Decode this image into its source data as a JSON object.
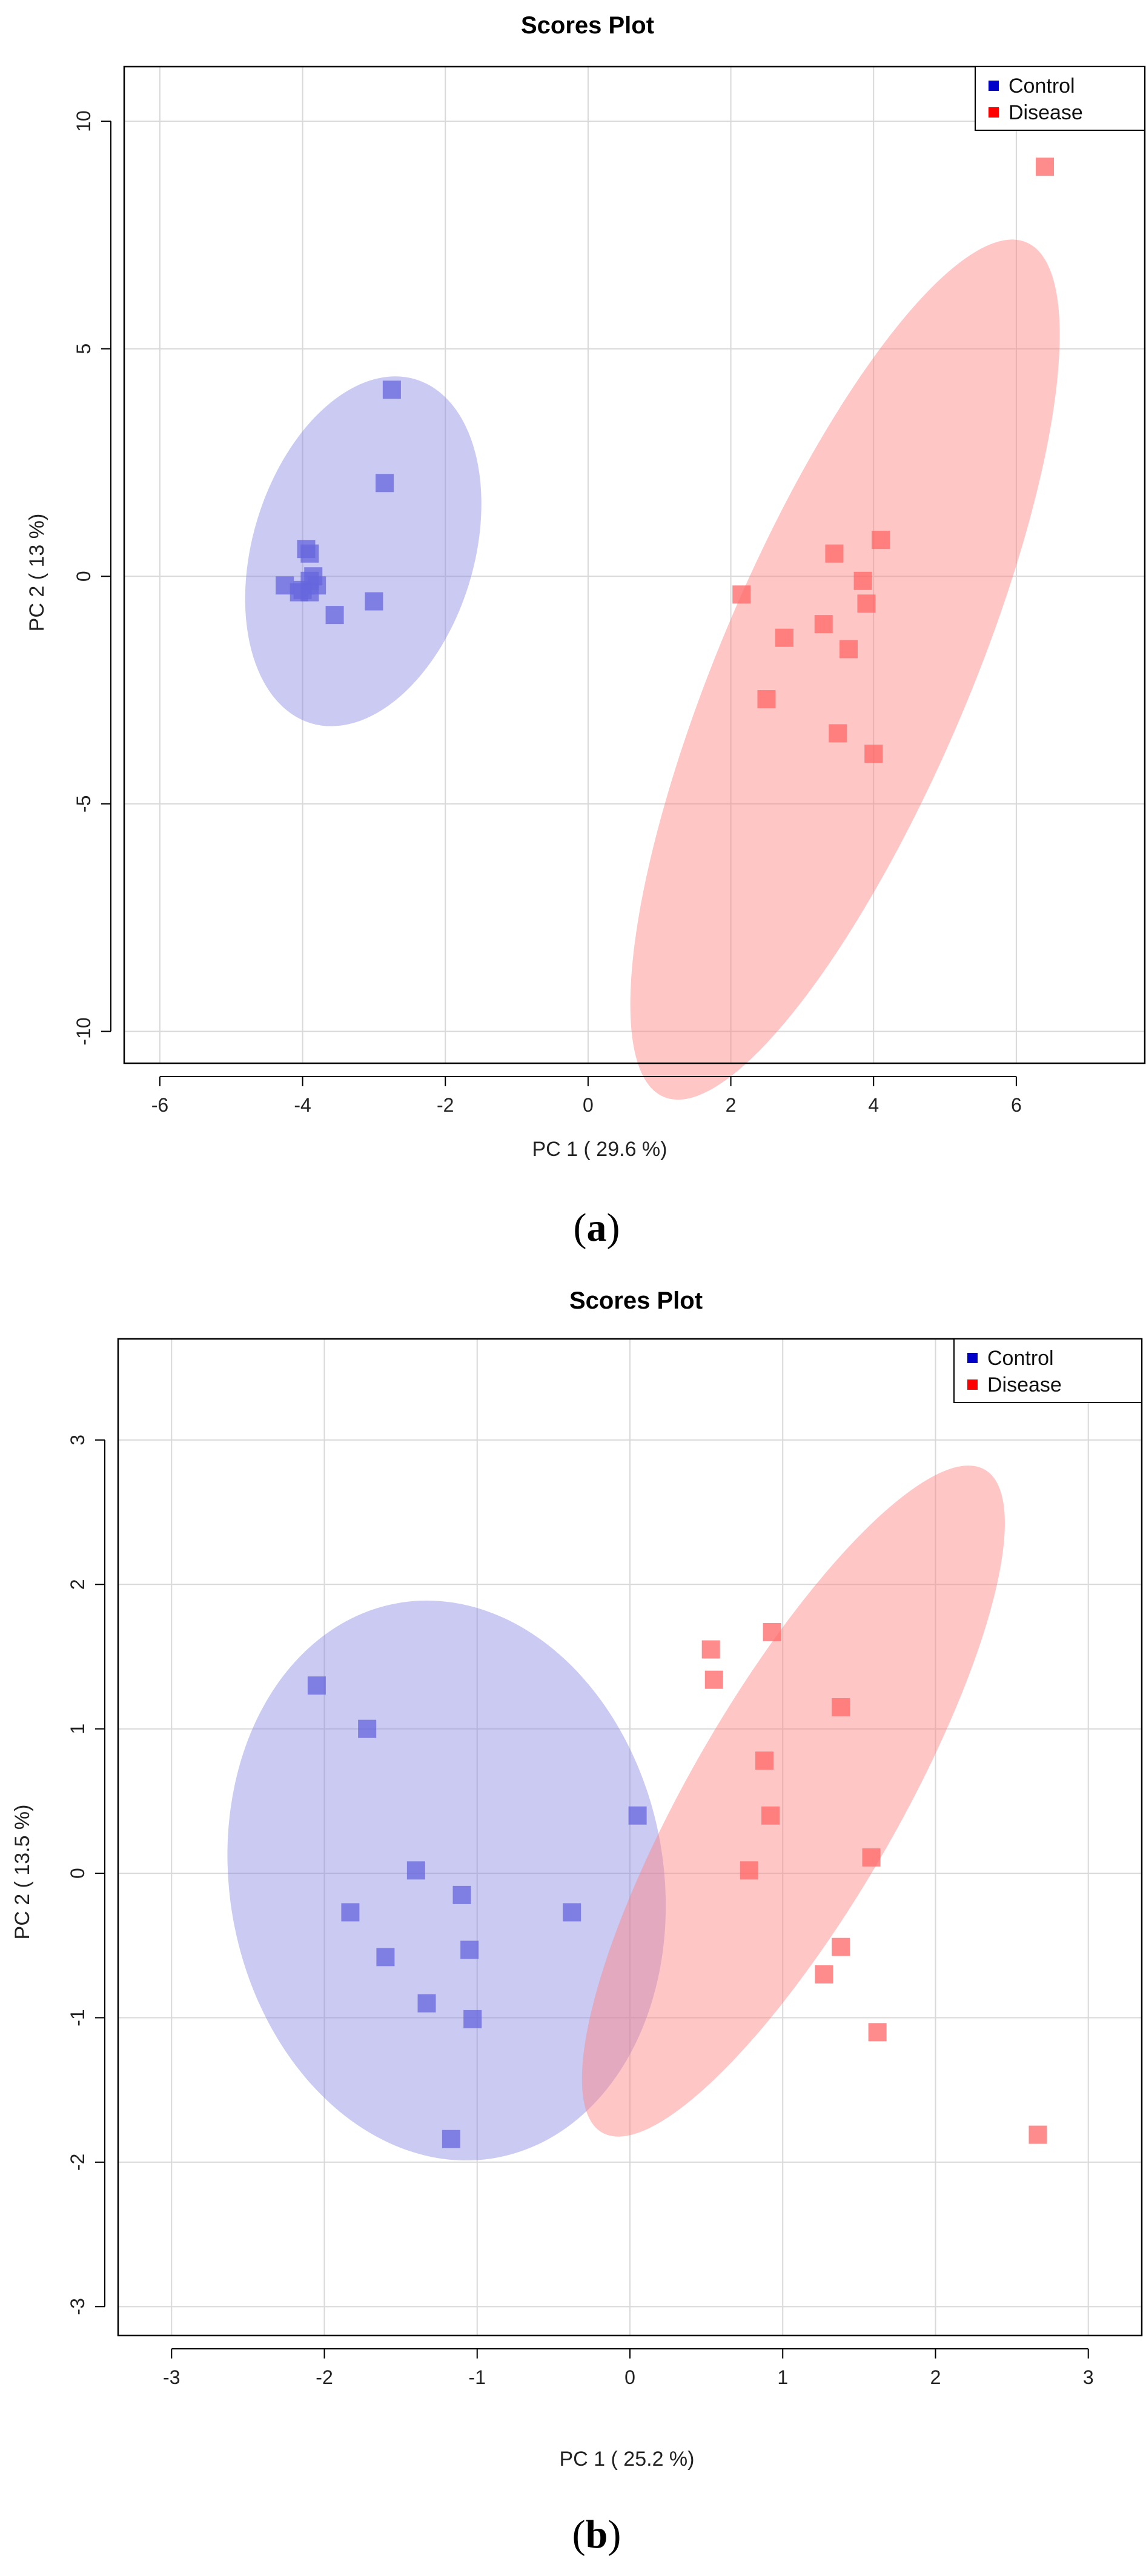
{
  "colors": {
    "control": "#0000c8",
    "disease": "#ff0000",
    "control_point": "#6666dd",
    "disease_point": "#ff6666",
    "control_ellipse": "#8080e0",
    "disease_ellipse": "#ff8080",
    "grid": "#d9d9d9"
  },
  "chart_data": [
    {
      "type": "scatter",
      "title": "Scores Plot",
      "xlabel": "PC 1 ( 29.6 %)",
      "ylabel": "PC 2 ( 13 %)",
      "caption": "a",
      "xlim": [
        -6.5,
        7.8
      ],
      "ylim": [
        -10.7,
        11.2
      ],
      "xticks": [
        -6,
        -4,
        -2,
        0,
        2,
        4,
        6
      ],
      "xtick_labels": [
        "-6",
        "-4",
        "-2",
        "0",
        "2",
        "4",
        "6"
      ],
      "yticks": [
        -10,
        -5,
        0,
        5,
        10
      ],
      "ytick_labels": [
        "-10",
        "-5",
        "0",
        "5",
        "10"
      ],
      "legend": {
        "position": "top-right",
        "entries": [
          "Control",
          "Disease"
        ]
      },
      "series": [
        {
          "name": "Control",
          "x": [
            -2.75,
            -2.85,
            -3.95,
            -3.9,
            -4.25,
            -4.05,
            -4.0,
            -3.9,
            -3.85,
            -3.8,
            -3.9,
            -3.55,
            -3.0
          ],
          "y": [
            4.1,
            2.05,
            0.6,
            0.5,
            -0.2,
            -0.35,
            -0.3,
            -0.1,
            0.0,
            -0.2,
            -0.35,
            -0.85,
            -0.55
          ],
          "ellipse": {
            "cx": -3.15,
            "cy": 0.55,
            "rx": 1.55,
            "ry": 3.95,
            "angle_deg": 17
          }
        },
        {
          "name": "Disease",
          "x": [
            6.4,
            4.1,
            3.45,
            3.85,
            3.9,
            2.15,
            3.3,
            2.75,
            3.65,
            2.5,
            3.5,
            4.0
          ],
          "y": [
            9.0,
            0.8,
            0.5,
            -0.1,
            -0.6,
            -0.4,
            -1.05,
            -1.35,
            -1.6,
            -2.7,
            -3.45,
            -3.9
          ],
          "ellipse": {
            "cx": 3.6,
            "cy": -2.05,
            "rx": 1.75,
            "ry": 10.2,
            "angle_deg": 23
          }
        }
      ]
    },
    {
      "type": "scatter",
      "title": "Scores Plot",
      "xlabel": "PC 1 ( 25.2 %)",
      "ylabel": "PC 2 ( 13.5 %)",
      "caption": "b",
      "xlim": [
        -3.35,
        3.35
      ],
      "ylim": [
        -3.2,
        3.7
      ],
      "xticks": [
        -3,
        -2,
        -1,
        0,
        1,
        2,
        3
      ],
      "xtick_labels": [
        "-3",
        "-2",
        "-1",
        "0",
        "1",
        "2",
        "3"
      ],
      "yticks": [
        -3,
        -2,
        -1,
        0,
        1,
        2,
        3
      ],
      "ytick_labels": [
        "-3",
        "-2",
        "-1",
        "0",
        "1",
        "2",
        "3"
      ],
      "legend": {
        "position": "top-right",
        "entries": [
          "Control",
          "Disease"
        ]
      },
      "series": [
        {
          "name": "Control",
          "x": [
            -2.05,
            -1.72,
            0.05,
            -1.4,
            -1.83,
            -1.1,
            -0.38,
            -1.6,
            -1.05,
            -1.33,
            -1.03,
            -1.17
          ],
          "y": [
            1.3,
            1.0,
            0.4,
            0.02,
            -0.27,
            -0.15,
            -0.27,
            -0.58,
            -0.53,
            -0.9,
            -1.01,
            -1.84
          ],
          "ellipse": {
            "cx": -1.2,
            "cy": -0.05,
            "rx": 1.42,
            "ry": 1.95,
            "angle_deg": -10
          }
        },
        {
          "name": "Disease",
          "x": [
            0.53,
            0.93,
            0.55,
            1.38,
            0.88,
            0.92,
            1.58,
            0.78,
            1.38,
            1.27,
            1.62,
            2.67
          ],
          "y": [
            1.55,
            1.67,
            1.34,
            1.15,
            0.78,
            0.4,
            0.11,
            0.02,
            -0.51,
            -0.7,
            -1.1,
            -1.81
          ],
          "ellipse": {
            "cx": 1.07,
            "cy": 0.5,
            "rx": 0.68,
            "ry": 2.65,
            "angle_deg": 30
          }
        }
      ]
    }
  ]
}
